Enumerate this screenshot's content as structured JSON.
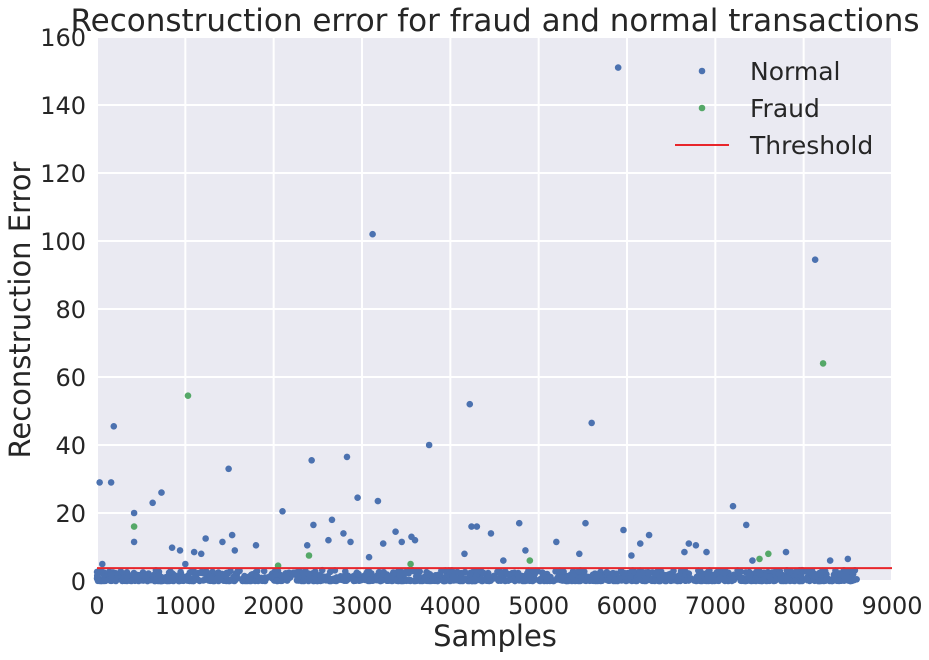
{
  "chart_data": {
    "type": "scatter",
    "title": "Reconstruction error for fraud and normal transactions",
    "xlabel": "Samples",
    "ylabel": "Reconstruction Error",
    "xlim": [
      0,
      9000
    ],
    "ylim": [
      0,
      160
    ],
    "x_ticks": [
      "0",
      "1000",
      "2000",
      "3000",
      "4000",
      "5000",
      "6000",
      "7000",
      "8000",
      "9000"
    ],
    "y_ticks": [
      "0",
      "20",
      "40",
      "60",
      "80",
      "100",
      "120",
      "140",
      "160"
    ],
    "grid": true,
    "legend_position": "top-right",
    "threshold": 3.8,
    "series": [
      {
        "name": "Normal",
        "color": "#4c72b0",
        "points": [
          [
            30,
            29
          ],
          [
            60,
            5
          ],
          [
            160,
            29
          ],
          [
            190,
            45.5
          ],
          [
            420,
            20
          ],
          [
            420,
            11.5
          ],
          [
            630,
            23
          ],
          [
            730,
            26
          ],
          [
            850,
            9.8
          ],
          [
            940,
            9
          ],
          [
            1000,
            5
          ],
          [
            1100,
            8.5
          ],
          [
            1180,
            8
          ],
          [
            1230,
            12.5
          ],
          [
            1420,
            11.5
          ],
          [
            1490,
            33
          ],
          [
            1530,
            13.5
          ],
          [
            1560,
            9
          ],
          [
            1800,
            10.5
          ],
          [
            2100,
            20.5
          ],
          [
            2380,
            10.5
          ],
          [
            2430,
            35.5
          ],
          [
            2450,
            16.5
          ],
          [
            2620,
            12
          ],
          [
            2660,
            18
          ],
          [
            2790,
            14
          ],
          [
            2830,
            36.5
          ],
          [
            2870,
            11.5
          ],
          [
            2950,
            24.5
          ],
          [
            3080,
            7
          ],
          [
            3120,
            102
          ],
          [
            3180,
            23.5
          ],
          [
            3240,
            11
          ],
          [
            3380,
            14.5
          ],
          [
            3450,
            11.5
          ],
          [
            3560,
            13
          ],
          [
            3600,
            12
          ],
          [
            3760,
            40
          ],
          [
            4160,
            8
          ],
          [
            4220,
            52
          ],
          [
            4240,
            16
          ],
          [
            4300,
            16
          ],
          [
            4460,
            14
          ],
          [
            4600,
            6
          ],
          [
            4780,
            17
          ],
          [
            4850,
            9
          ],
          [
            5200,
            11.5
          ],
          [
            5460,
            8
          ],
          [
            5530,
            17
          ],
          [
            5600,
            46.5
          ],
          [
            5900,
            151
          ],
          [
            5960,
            15
          ],
          [
            6050,
            7.5
          ],
          [
            6150,
            11
          ],
          [
            6250,
            13.5
          ],
          [
            6650,
            8.5
          ],
          [
            6700,
            11
          ],
          [
            6780,
            10.5
          ],
          [
            6900,
            8.5
          ],
          [
            7200,
            22
          ],
          [
            7350,
            16.5
          ],
          [
            7420,
            6
          ],
          [
            7800,
            8.5
          ],
          [
            8130,
            94.5
          ],
          [
            8300,
            6
          ],
          [
            8500,
            6.5
          ],
          [
            8560,
            2
          ],
          [
            8600,
            0.5
          ]
        ]
      },
      {
        "name": "Fraud",
        "color": "#55a868",
        "points": [
          [
            420,
            16
          ],
          [
            1030,
            54.5
          ],
          [
            2050,
            4.5
          ],
          [
            2400,
            7.5
          ],
          [
            3550,
            5
          ],
          [
            4900,
            6
          ],
          [
            7500,
            6.5
          ],
          [
            7600,
            8
          ],
          [
            8220,
            64
          ]
        ]
      },
      {
        "name": "Threshold",
        "color": "#e8262b",
        "type": "line",
        "y": 3.8
      }
    ]
  }
}
